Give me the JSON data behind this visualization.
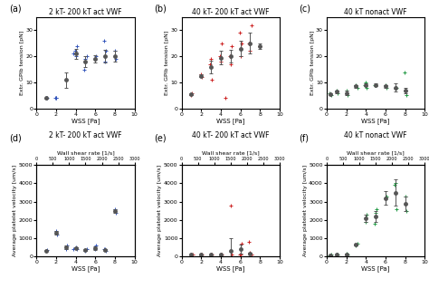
{
  "title_a": "2 kT- 200 kT act VWF",
  "title_b": "40 kT- 200 kT act VWF",
  "title_c": "40 kT nonact VWF",
  "title_d": "2 kT- 200 kT act VWF",
  "title_e": "40 kT- 200 kT act VWF",
  "title_f": "40 kT nonact VWF",
  "ylabel_top": "Extr. GPIb tension [pN]",
  "ylabel_bottom": "Average platelet velocity [um/s]",
  "xlabel": "WSS [Pa]",
  "wsr_label": "Wall shear rate [1/s]",
  "color_a": "#3355bb",
  "color_b": "#cc2222",
  "color_c": "#229944",
  "mean_color": "#555555",
  "panel_a_x": [
    1.0,
    1.05,
    1.95,
    2.0,
    2.05,
    3.0,
    3.8,
    3.9,
    4.0,
    4.1,
    4.9,
    5.0,
    5.1,
    6.0,
    6.1,
    6.9,
    7.0,
    7.1,
    8.0,
    8.1
  ],
  "panel_a_y": [
    4,
    4,
    4,
    4,
    4,
    11,
    21,
    22,
    20,
    24,
    15,
    19,
    20,
    19,
    20,
    26,
    18,
    22,
    22,
    19
  ],
  "panel_a_mean_x": [
    1,
    3,
    4,
    5,
    6,
    7,
    8
  ],
  "panel_a_mean_y": [
    4,
    11,
    21,
    18,
    19,
    20,
    20
  ],
  "panel_a_err": [
    0.1,
    3,
    2,
    2,
    1.5,
    2.5,
    2
  ],
  "panel_b_x": [
    1.0,
    1.05,
    2.0,
    2.1,
    2.9,
    3.0,
    3.1,
    3.9,
    4.0,
    4.1,
    4.9,
    5.0,
    5.1,
    5.9,
    6.0,
    6.1,
    6.9,
    7.0,
    7.1,
    8.0,
    4.5
  ],
  "panel_b_y": [
    5,
    6,
    13,
    12,
    17,
    19,
    11,
    20,
    18,
    25,
    20,
    17,
    24,
    29,
    20,
    25,
    25,
    22,
    32,
    24,
    4
  ],
  "panel_b_mean_x": [
    1,
    2,
    3,
    4,
    5,
    6,
    7,
    8
  ],
  "panel_b_mean_y": [
    5.5,
    12.5,
    16,
    19.5,
    20,
    23,
    25,
    24
  ],
  "panel_b_err": [
    0.5,
    0.5,
    2.5,
    2.5,
    2.5,
    3,
    4,
    1
  ],
  "panel_c_x": [
    0.3,
    0.5,
    1.0,
    1.1,
    2.0,
    2.1,
    3.0,
    3.1,
    3.9,
    4.0,
    4.1,
    4.9,
    5.0,
    6.0,
    6.1,
    7.0,
    7.1,
    7.9,
    8.0,
    8.1
  ],
  "panel_c_y": [
    6,
    5,
    7,
    6,
    7,
    5,
    9,
    8,
    9,
    10,
    8,
    9,
    9,
    9,
    8,
    8,
    8,
    14,
    7,
    5
  ],
  "panel_c_mean_x": [
    0.4,
    1,
    2,
    3,
    4,
    5,
    6,
    7,
    8
  ],
  "panel_c_mean_y": [
    5.5,
    6.5,
    6,
    8.5,
    9,
    9,
    8.5,
    8,
    7
  ],
  "panel_c_err": [
    0.5,
    0.5,
    1,
    0.5,
    0.5,
    0.5,
    0.5,
    1.5,
    1
  ],
  "panel_d_x": [
    1.0,
    1.1,
    2.0,
    2.1,
    3.0,
    3.1,
    3.8,
    4.0,
    4.1,
    5.0,
    5.1,
    6.0,
    6.1,
    6.9,
    7.0,
    7.1,
    8.0,
    8.1
  ],
  "panel_d_y": [
    300,
    350,
    1400,
    1200,
    400,
    600,
    400,
    500,
    400,
    300,
    400,
    400,
    600,
    400,
    400,
    300,
    2600,
    2400
  ],
  "panel_d_mean_x": [
    1,
    2,
    3,
    4,
    5,
    6,
    7,
    8
  ],
  "panel_d_mean_y": [
    320,
    1300,
    500,
    450,
    350,
    450,
    350,
    2500
  ],
  "panel_d_err": [
    30,
    100,
    100,
    50,
    50,
    100,
    50,
    100
  ],
  "panel_e_x": [
    1.0,
    1.1,
    2.0,
    2.1,
    3.0,
    3.1,
    4.0,
    4.1,
    5.0,
    5.1,
    5.9,
    6.0,
    6.1,
    6.9,
    7.0,
    7.1
  ],
  "panel_e_y": [
    100,
    120,
    100,
    120,
    100,
    80,
    100,
    90,
    2800,
    100,
    100,
    100,
    700,
    800,
    200,
    100
  ],
  "panel_e_mean_x": [
    1,
    2,
    3,
    4,
    5,
    6,
    7
  ],
  "panel_e_mean_y": [
    110,
    110,
    90,
    95,
    300,
    400,
    150
  ],
  "panel_e_err": [
    10,
    10,
    10,
    5,
    700,
    250,
    50
  ],
  "panel_f_x": [
    0.3,
    0.5,
    1.0,
    1.1,
    2.0,
    2.1,
    3.0,
    3.1,
    4.0,
    4.1,
    4.9,
    5.0,
    5.1,
    6.0,
    6.1,
    6.9,
    7.0,
    7.1,
    8.0,
    8.1
  ],
  "panel_f_y": [
    50,
    80,
    100,
    80,
    150,
    100,
    600,
    700,
    1900,
    2300,
    1800,
    2400,
    2600,
    3200,
    3300,
    3900,
    4000,
    2600,
    3300,
    2500
  ],
  "panel_f_mean_x": [
    0.4,
    1,
    2,
    3,
    4,
    5,
    6,
    7,
    8
  ],
  "panel_f_mean_y": [
    65,
    90,
    125,
    650,
    2100,
    2200,
    3200,
    3500,
    2900
  ],
  "panel_f_err": [
    15,
    10,
    25,
    50,
    200,
    300,
    350,
    700,
    400
  ]
}
